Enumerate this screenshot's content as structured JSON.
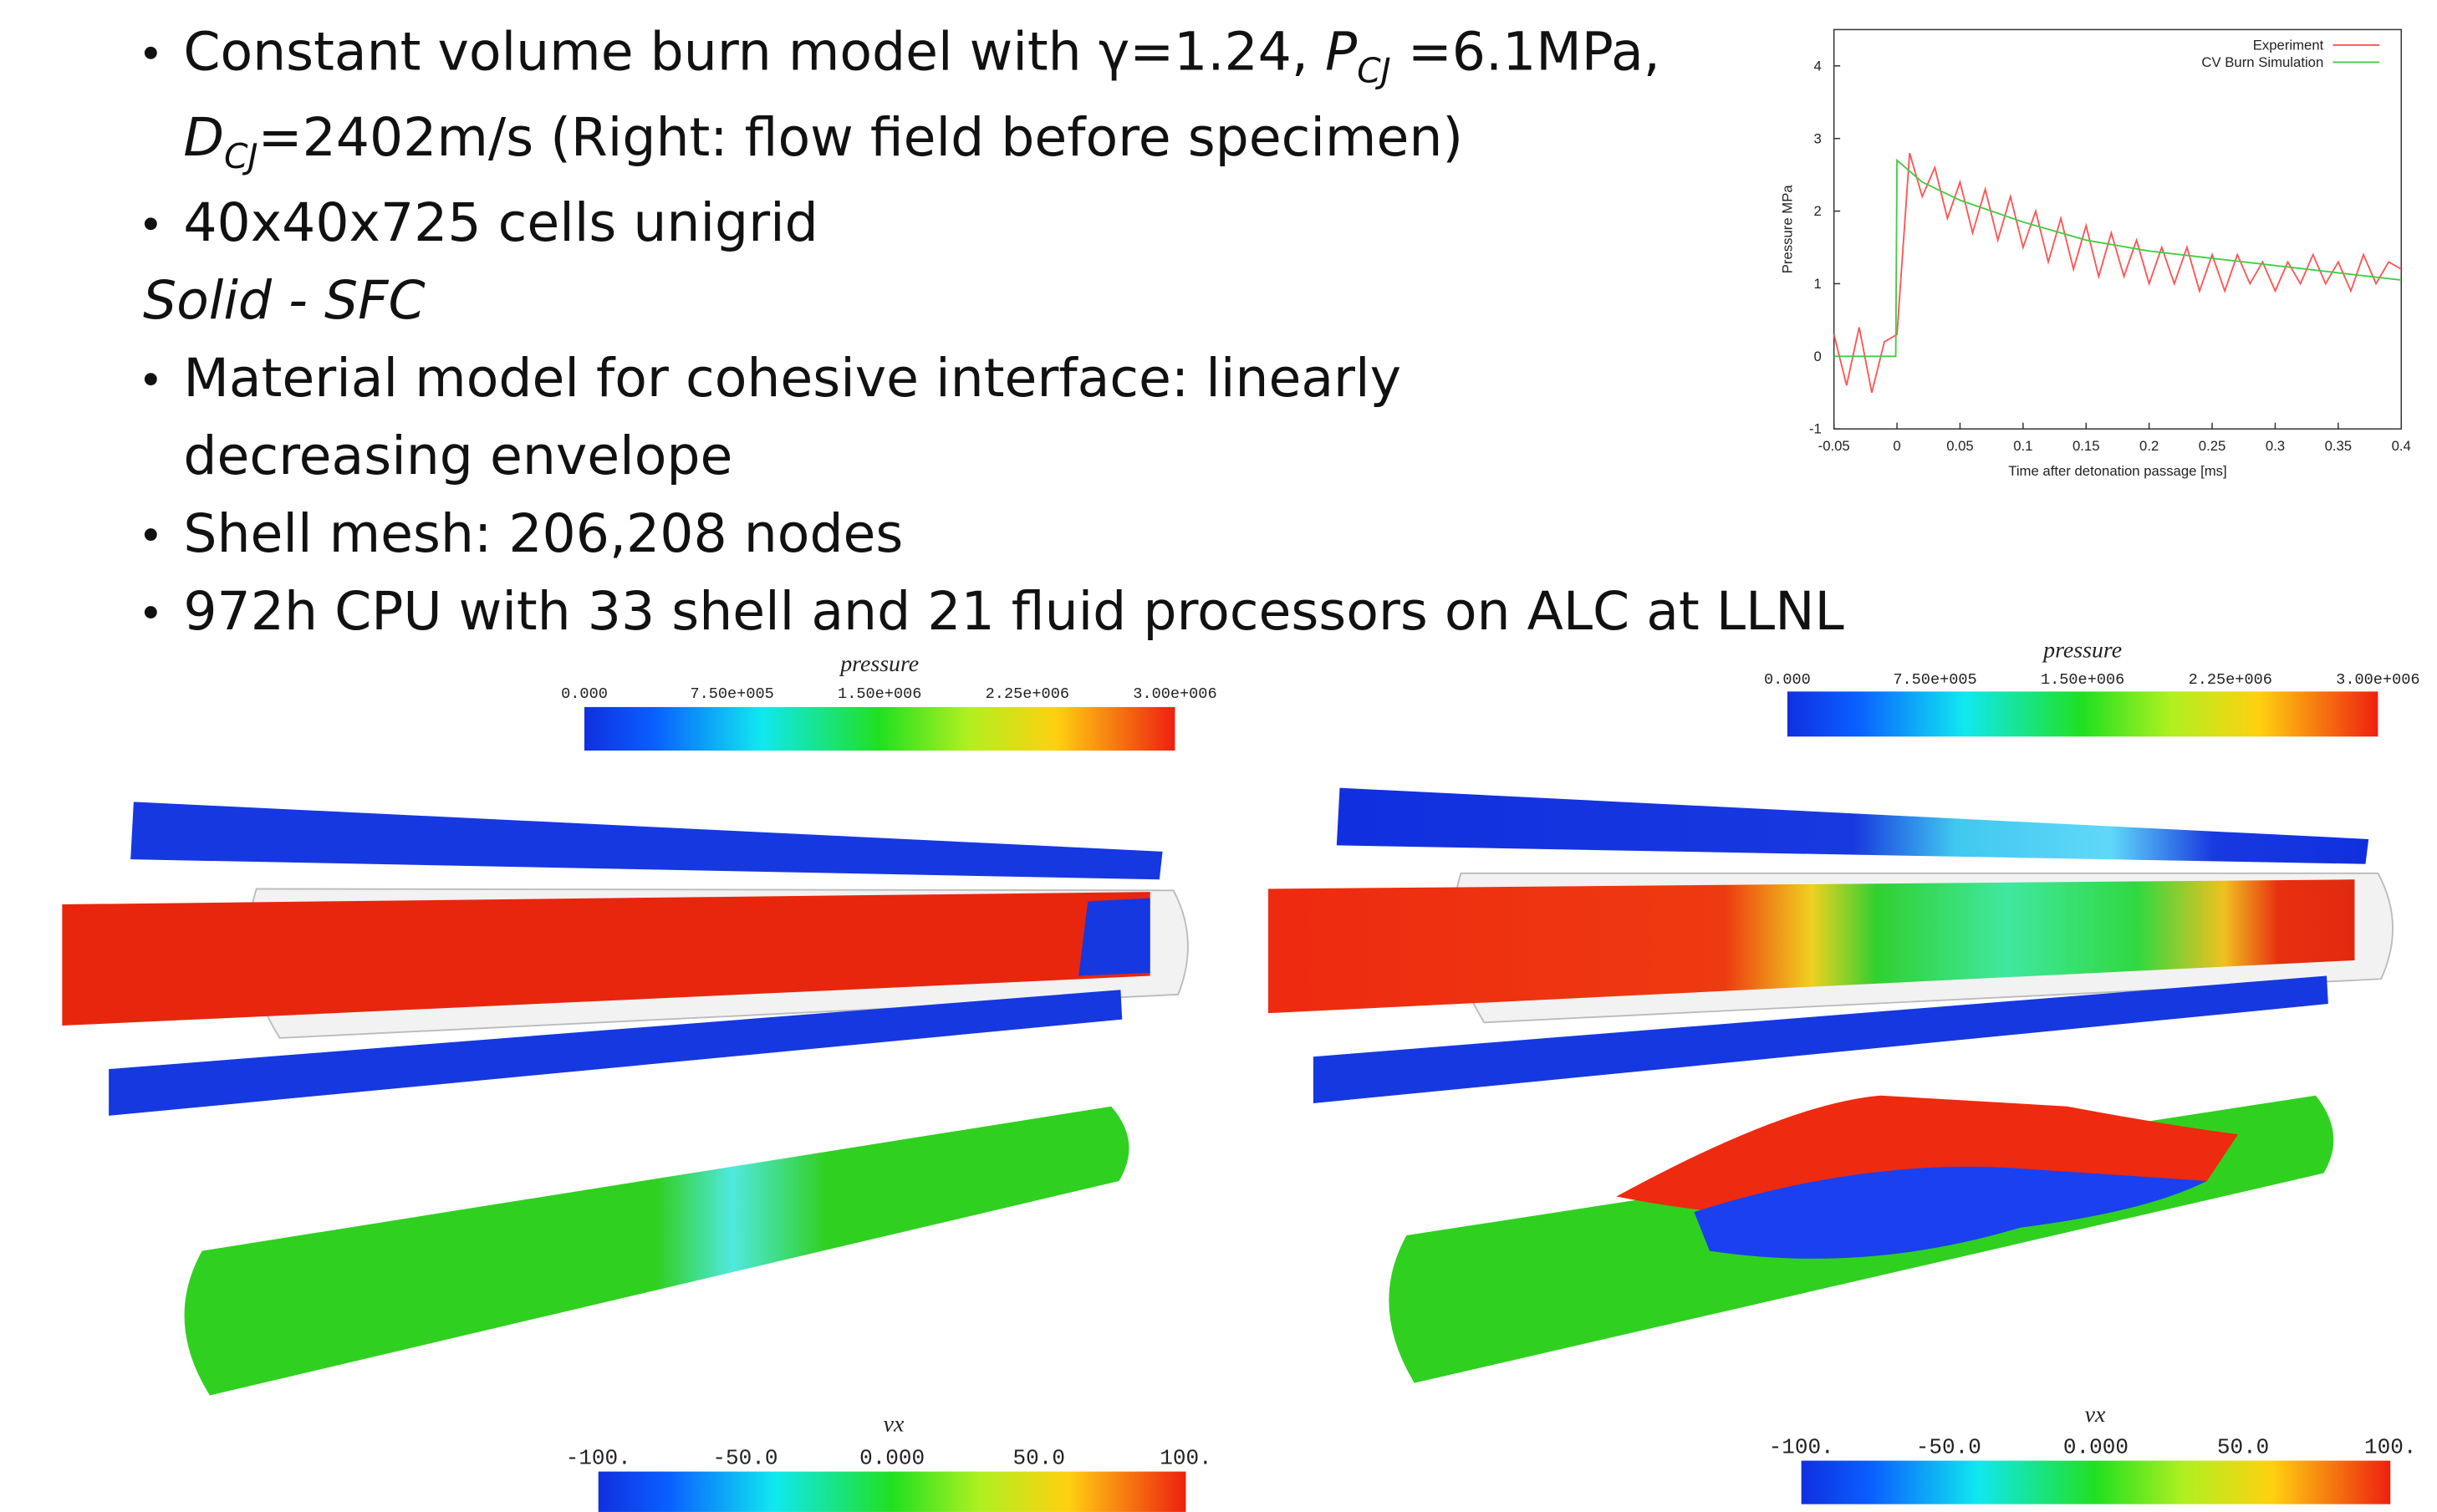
{
  "lines": [
    {
      "bullet": true,
      "segments": [
        {
          "text": "Constant volume burn model with γ=1.24, ",
          "style": "normal"
        },
        {
          "text": "P",
          "style": "italic"
        },
        {
          "text": "CJ",
          "style": "sub"
        },
        {
          "text": " =6.1MPa,",
          "style": "normal"
        }
      ]
    },
    {
      "bullet": false,
      "segments": [
        {
          "text": "D",
          "style": "italic"
        },
        {
          "text": "CJ",
          "style": "sub"
        },
        {
          "text": "=2402m/s (Right: flow field before specimen)",
          "style": "normal"
        }
      ]
    },
    {
      "bullet": true,
      "segments": [
        {
          "text": "40x40x725 cells unigrid",
          "style": "normal"
        }
      ]
    },
    {
      "bullet": false,
      "segments": [
        {
          "text": "Solid - SFC",
          "style": "italic"
        }
      ]
    },
    {
      "bullet": true,
      "segments": [
        {
          "text": "Material model for cohesive interface: linearly",
          "style": "normal"
        }
      ]
    },
    {
      "bullet": false,
      "segments": [
        {
          "text": "decreasing envelope",
          "style": "normal"
        }
      ]
    },
    {
      "bullet": true,
      "segments": [
        {
          "text": "Shell mesh: 206,208 nodes",
          "style": "normal"
        }
      ]
    },
    {
      "bullet": true,
      "segments": [
        {
          "text": "972h CPU with 33 shell and 21 fluid processors on ALC at LLNL",
          "style": "normal"
        }
      ]
    }
  ],
  "chart_data": {
    "type": "line",
    "xlabel": "Time after detonation passage [ms]",
    "ylabel": "Pressure MPa",
    "xlim": [
      -0.05,
      0.4
    ],
    "ylim": [
      -1,
      4.5
    ],
    "xticks": [
      -0.05,
      0,
      0.05,
      0.1,
      0.15,
      0.2,
      0.25,
      0.3,
      0.35,
      0.4
    ],
    "yticks": [
      -1,
      0,
      1,
      2,
      3,
      4
    ],
    "legend": "upper right",
    "series": [
      {
        "name": "Experiment",
        "color": "#ff5555",
        "x": [
          -0.05,
          -0.04,
          -0.03,
          -0.02,
          -0.01,
          0,
          0.01,
          0.02,
          0.03,
          0.04,
          0.05,
          0.06,
          0.07,
          0.08,
          0.09,
          0.1,
          0.11,
          0.12,
          0.13,
          0.14,
          0.15,
          0.16,
          0.17,
          0.18,
          0.19,
          0.2,
          0.21,
          0.22,
          0.23,
          0.24,
          0.25,
          0.26,
          0.27,
          0.28,
          0.29,
          0.3,
          0.31,
          0.32,
          0.33,
          0.34,
          0.35,
          0.36,
          0.37,
          0.38,
          0.39,
          0.4
        ],
        "values": [
          0.3,
          -0.4,
          0.4,
          -0.5,
          0.2,
          0.3,
          2.8,
          2.2,
          2.6,
          1.9,
          2.4,
          1.7,
          2.3,
          1.6,
          2.2,
          1.5,
          2.0,
          1.3,
          1.9,
          1.2,
          1.8,
          1.1,
          1.7,
          1.1,
          1.6,
          1.0,
          1.5,
          1.0,
          1.5,
          0.9,
          1.4,
          0.9,
          1.4,
          1.0,
          1.3,
          0.9,
          1.3,
          1.0,
          1.4,
          1.0,
          1.3,
          0.9,
          1.4,
          1.0,
          1.3,
          1.2
        ]
      },
      {
        "name": "CV Burn Simulation",
        "color": "#44cc44",
        "x": [
          -0.05,
          -0.001,
          0,
          0.02,
          0.05,
          0.1,
          0.15,
          0.2,
          0.25,
          0.3,
          0.35,
          0.4
        ],
        "values": [
          0,
          0,
          2.7,
          2.4,
          2.15,
          1.85,
          1.6,
          1.45,
          1.35,
          1.25,
          1.15,
          1.05
        ]
      }
    ]
  },
  "colorbars": [
    {
      "title": "pressure",
      "labels": [
        "0.000",
        "7.50e+005",
        "1.50e+006",
        "2.25e+006",
        "3.00e+006"
      ]
    },
    {
      "title": "pressure",
      "labels": [
        "0.000",
        "7.50e+005",
        "1.50e+006",
        "2.25e+006",
        "3.00e+006"
      ]
    },
    {
      "title": "vx",
      "labels": [
        "-100.",
        "-50.0",
        "0.000",
        "50.0",
        "100."
      ]
    },
    {
      "title": "vx",
      "labels": [
        "-100.",
        "-50.0",
        "0.000",
        "50.0",
        "100."
      ]
    }
  ]
}
